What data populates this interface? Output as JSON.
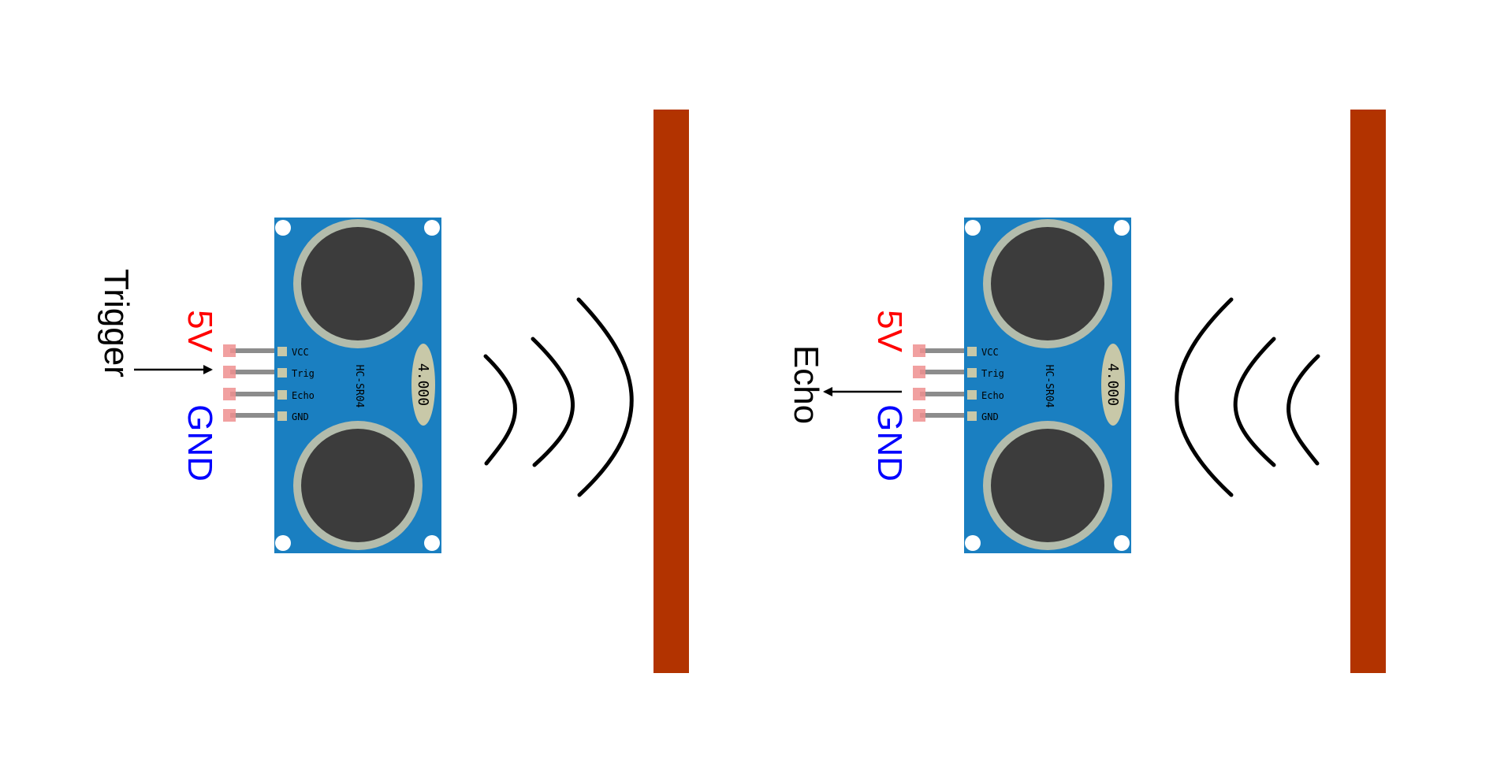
{
  "colors": {
    "board": "#1a7fc1",
    "transducer_ring": "#b3bcac",
    "transducer_core": "#3c3c3c",
    "pin": "#8c8c8c",
    "pin_end": "#ef8f8f",
    "pad": "#c8c8a8",
    "crystal": "#c8c8a8",
    "wall": "#b23300",
    "wave": "#000000",
    "label_5v": "#ff0000",
    "label_gnd": "#0000ff",
    "label_signal": "#000000"
  },
  "panels": {
    "left": {
      "pins": [
        "VCC",
        "Trig",
        "Echo",
        "GND"
      ],
      "model": "HC-SR04",
      "crystal": "4.000",
      "label_5v": "5V",
      "label_gnd": "GND",
      "signal_label": "Trigger",
      "signal_direction": "in",
      "wave_direction": "outgoing"
    },
    "right": {
      "pins": [
        "VCC",
        "Trig",
        "Echo",
        "GND"
      ],
      "model": "HC-SR04",
      "crystal": "4.000",
      "label_5v": "5V",
      "label_gnd": "GND",
      "signal_label": "Echo",
      "signal_direction": "out",
      "wave_direction": "returning"
    }
  }
}
